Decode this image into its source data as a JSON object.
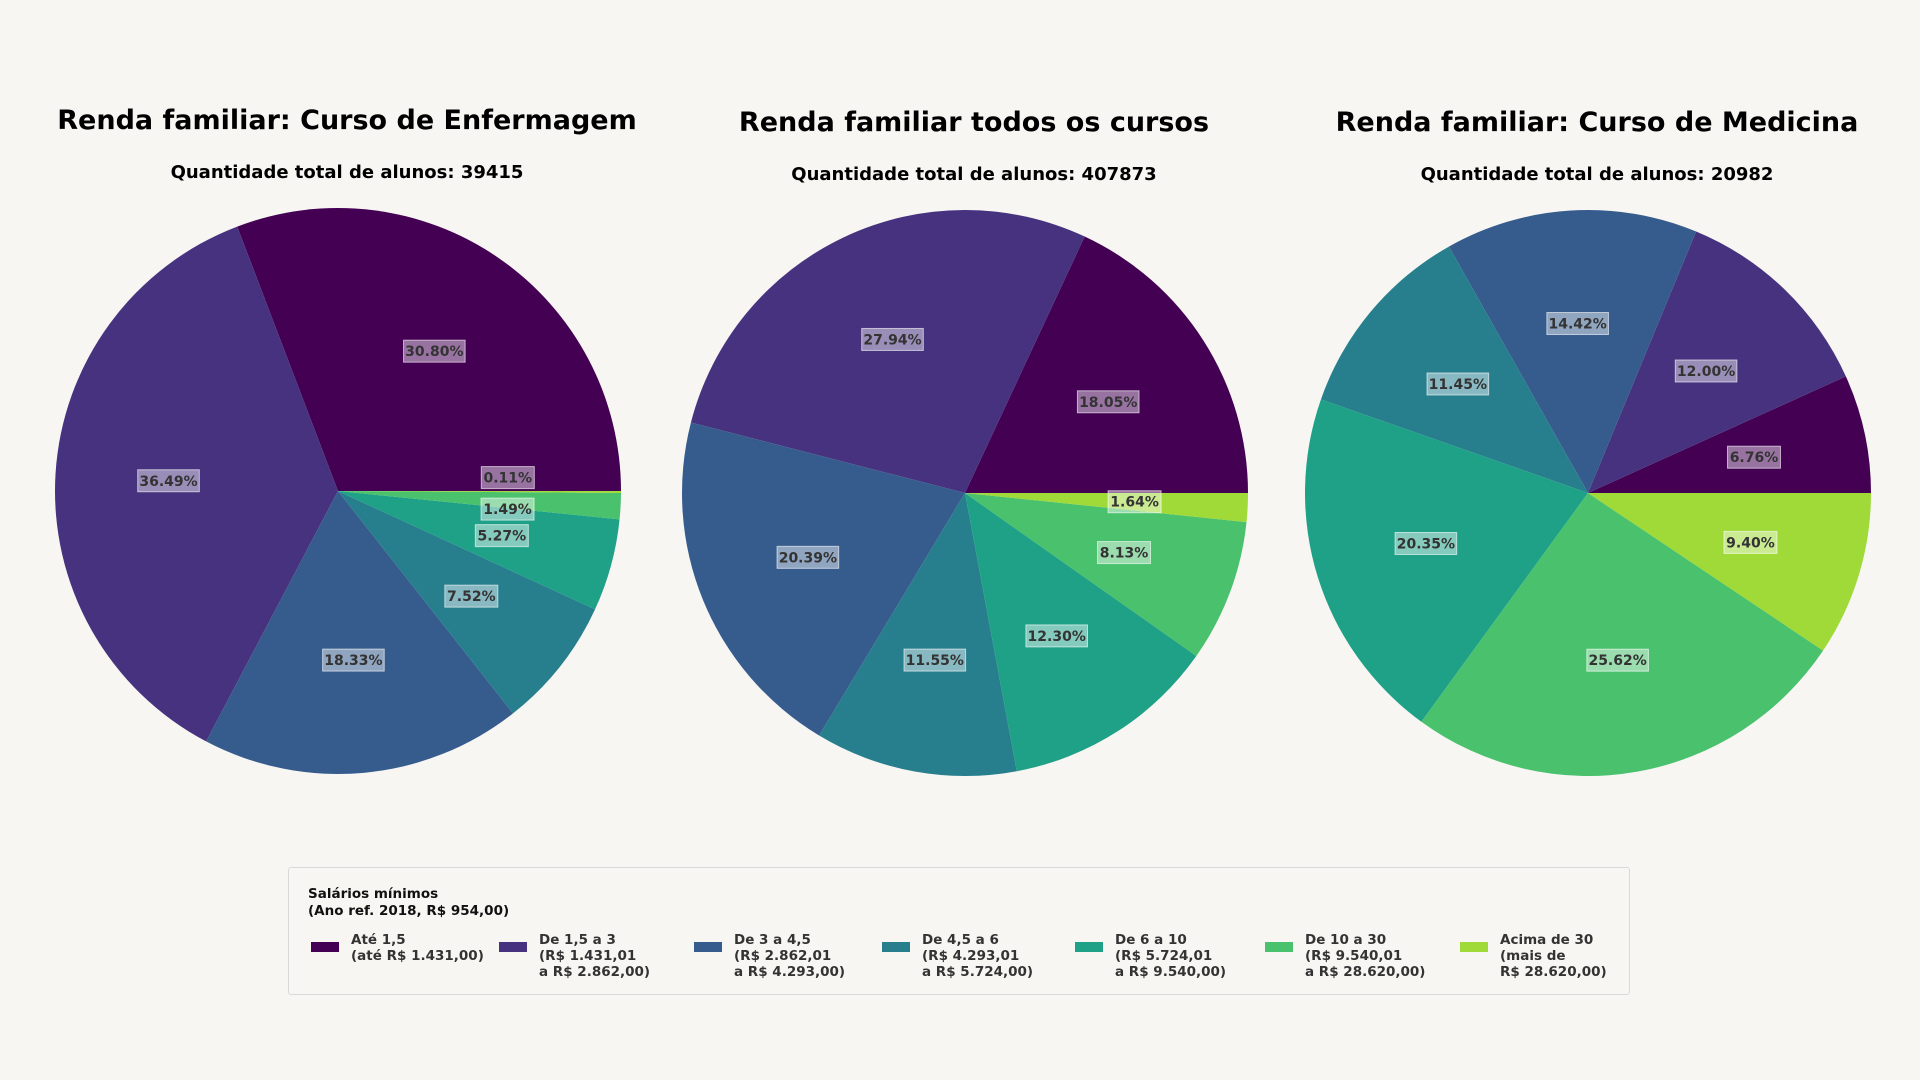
{
  "colors": [
    "#440154",
    "#46327e",
    "#365c8d",
    "#277f8e",
    "#1fa187",
    "#4ac16d",
    "#a0da39"
  ],
  "legend": {
    "title_line1": "Salários mínimos",
    "title_line2": "(Ano ref. 2018, R$ 954,00)",
    "items": [
      {
        "lines": [
          "Até 1,5",
          "(até R$ 1.431,00)"
        ]
      },
      {
        "lines": [
          "De 1,5 a 3",
          "(R$ 1.431,01",
          "a R$ 2.862,00)"
        ]
      },
      {
        "lines": [
          "De 3 a 4,5",
          "(R$ 2.862,01",
          "a R$ 4.293,00)"
        ]
      },
      {
        "lines": [
          "De 4,5 a 6",
          "(R$ 4.293,01",
          "a R$ 5.724,00)"
        ]
      },
      {
        "lines": [
          "De 6 a 10",
          "(R$ 5.724,01",
          "a R$ 9.540,00)"
        ]
      },
      {
        "lines": [
          "De 10 a 30",
          "(R$ 9.540,01",
          "a R$ 28.620,00)"
        ]
      },
      {
        "lines": [
          "Acima de 30",
          "(mais de",
          "R$ 28.620,00)"
        ]
      }
    ]
  },
  "chart_data": [
    {
      "type": "pie",
      "title": "Renda familiar: Curso de Enfermagem",
      "subtitle": "Quantidade total de alunos: 39415",
      "categories": [
        "Até 1,5",
        "De 1,5 a 3",
        "De 3 a 4,5",
        "De 4,5 a 6",
        "De 6 a 10",
        "De 10 a 30",
        "Acima de 30"
      ],
      "values": [
        30.8,
        36.49,
        18.33,
        7.52,
        5.27,
        1.49,
        0.11
      ],
      "labels": [
        "30.80%",
        "36.49%",
        "18.33%",
        "7.52%",
        "5.27%",
        "1.49%",
        "0.11%"
      ]
    },
    {
      "type": "pie",
      "title": "Renda familiar todos os cursos",
      "subtitle": "Quantidade total de alunos: 407873",
      "categories": [
        "Até 1,5",
        "De 1,5 a 3",
        "De 3 a 4,5",
        "De 4,5 a 6",
        "De 6 a 10",
        "De 10 a 30",
        "Acima de 30"
      ],
      "values": [
        18.05,
        27.94,
        20.39,
        11.55,
        12.3,
        8.13,
        1.64
      ],
      "labels": [
        "18.05%",
        "27.94%",
        "20.39%",
        "11.55%",
        "12.30%",
        "8.13%",
        "1.64%"
      ]
    },
    {
      "type": "pie",
      "title": "Renda familiar: Curso de Medicina",
      "subtitle": "Quantidade total de alunos: 20982",
      "categories": [
        "Até 1,5",
        "De 1,5 a 3",
        "De 3 a 4,5",
        "De 4,5 a 6",
        "De 6 a 10",
        "De 10 a 30",
        "Acima de 30"
      ],
      "values": [
        6.76,
        12.0,
        14.42,
        11.45,
        20.35,
        25.62,
        9.4
      ],
      "labels": [
        "6.76%",
        "12.00%",
        "14.42%",
        "11.45%",
        "20.35%",
        "25.62%",
        "9.40%"
      ]
    }
  ]
}
